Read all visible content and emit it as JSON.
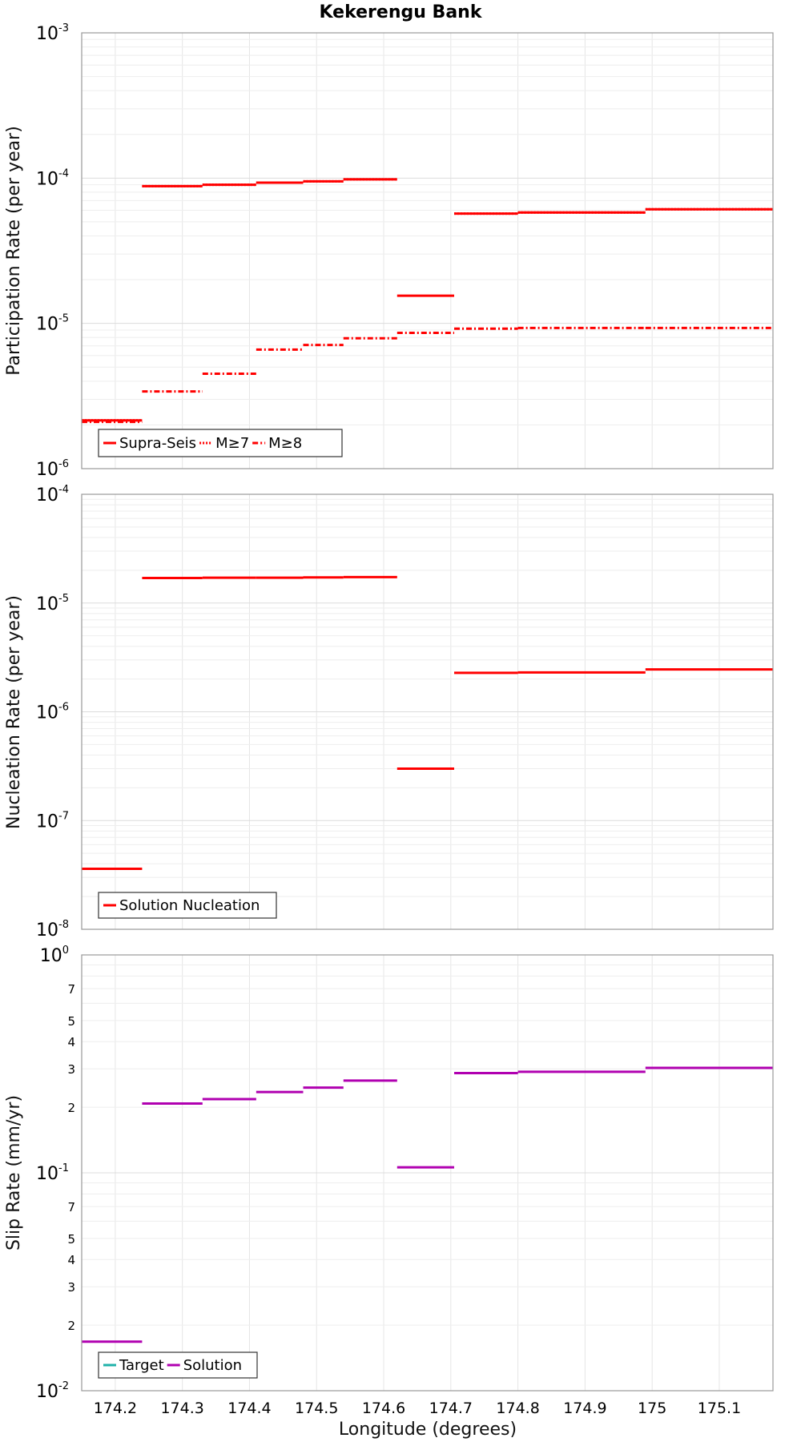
{
  "chart_data": [
    {
      "type": "line",
      "step": true,
      "title": "Kekerengu Bank",
      "xlabel": "",
      "ylabel": "Participation Rate (per year)",
      "xlim": [
        174.15,
        175.18
      ],
      "ylim": [
        1e-06,
        0.001
      ],
      "yscale": "log",
      "grid": true,
      "legend_position": "bottom-left",
      "y_ticks": [
        {
          "mantissa": "10",
          "exp": "-6",
          "value": 1e-06
        },
        {
          "mantissa": "10",
          "exp": "-5",
          "value": 1e-05
        },
        {
          "mantissa": "10",
          "exp": "-4",
          "value": 0.0001
        },
        {
          "mantissa": "10",
          "exp": "-3",
          "value": 0.001
        }
      ],
      "series": [
        {
          "name": "Supra-Seis",
          "color": "#ff0000",
          "style": "solid",
          "segments": [
            {
              "x0": 174.15,
              "x1": 174.24,
              "y": 2.15e-06
            },
            {
              "x0": 174.24,
              "x1": 174.33,
              "y": 8.8e-05
            },
            {
              "x0": 174.33,
              "x1": 174.41,
              "y": 9e-05
            },
            {
              "x0": 174.41,
              "x1": 174.48,
              "y": 9.3e-05
            },
            {
              "x0": 174.48,
              "x1": 174.54,
              "y": 9.5e-05
            },
            {
              "x0": 174.54,
              "x1": 174.62,
              "y": 9.8e-05
            },
            {
              "x0": 174.62,
              "x1": 174.705,
              "y": 1.55e-05
            },
            {
              "x0": 174.705,
              "x1": 174.8,
              "y": 5.7e-05
            },
            {
              "x0": 174.8,
              "x1": 174.99,
              "y": 5.8e-05
            },
            {
              "x0": 174.99,
              "x1": 175.18,
              "y": 6.1e-05
            }
          ]
        },
        {
          "name": "M≥7",
          "color": "#ff0000",
          "style": "dotted",
          "segments": [
            {
              "x0": 174.15,
              "x1": 174.24,
              "y": 2.15e-06
            },
            {
              "x0": 174.24,
              "x1": 174.33,
              "y": 8.8e-05
            },
            {
              "x0": 174.33,
              "x1": 174.41,
              "y": 9e-05
            },
            {
              "x0": 174.41,
              "x1": 174.48,
              "y": 9.3e-05
            },
            {
              "x0": 174.48,
              "x1": 174.54,
              "y": 9.5e-05
            },
            {
              "x0": 174.54,
              "x1": 174.62,
              "y": 9.8e-05
            },
            {
              "x0": 174.705,
              "x1": 174.8,
              "y": 5.7e-05
            },
            {
              "x0": 174.8,
              "x1": 174.99,
              "y": 5.8e-05
            },
            {
              "x0": 174.99,
              "x1": 175.18,
              "y": 6.1e-05
            }
          ]
        },
        {
          "name": "M≥8",
          "color": "#ff0000",
          "style": "dashdot",
          "segments": [
            {
              "x0": 174.15,
              "x1": 174.24,
              "y": 2.1e-06
            },
            {
              "x0": 174.24,
              "x1": 174.33,
              "y": 3.4e-06
            },
            {
              "x0": 174.33,
              "x1": 174.41,
              "y": 4.5e-06
            },
            {
              "x0": 174.41,
              "x1": 174.48,
              "y": 6.6e-06
            },
            {
              "x0": 174.48,
              "x1": 174.54,
              "y": 7.1e-06
            },
            {
              "x0": 174.54,
              "x1": 174.62,
              "y": 7.9e-06
            },
            {
              "x0": 174.62,
              "x1": 174.705,
              "y": 8.6e-06
            },
            {
              "x0": 174.705,
              "x1": 174.8,
              "y": 9.2e-06
            },
            {
              "x0": 174.8,
              "x1": 174.99,
              "y": 9.3e-06
            },
            {
              "x0": 174.99,
              "x1": 175.18,
              "y": 9.3e-06
            }
          ]
        }
      ]
    },
    {
      "type": "line",
      "step": true,
      "xlabel": "",
      "ylabel": "Nucleation Rate (per year)",
      "xlim": [
        174.15,
        175.18
      ],
      "ylim": [
        1e-08,
        0.0001
      ],
      "yscale": "log",
      "grid": true,
      "legend_position": "bottom-left",
      "y_ticks": [
        {
          "mantissa": "10",
          "exp": "-8",
          "value": 1e-08
        },
        {
          "mantissa": "10",
          "exp": "-7",
          "value": 1e-07
        },
        {
          "mantissa": "10",
          "exp": "-6",
          "value": 1e-06
        },
        {
          "mantissa": "10",
          "exp": "-5",
          "value": 1e-05
        },
        {
          "mantissa": "10",
          "exp": "-4",
          "value": 0.0001
        }
      ],
      "series": [
        {
          "name": "Solution Nucleation",
          "color": "#ff0000",
          "style": "solid",
          "segments": [
            {
              "x0": 174.15,
              "x1": 174.24,
              "y": 3.6e-08
            },
            {
              "x0": 174.24,
              "x1": 174.33,
              "y": 1.7e-05
            },
            {
              "x0": 174.33,
              "x1": 174.41,
              "y": 1.71e-05
            },
            {
              "x0": 174.41,
              "x1": 174.48,
              "y": 1.71e-05
            },
            {
              "x0": 174.48,
              "x1": 174.54,
              "y": 1.72e-05
            },
            {
              "x0": 174.54,
              "x1": 174.62,
              "y": 1.73e-05
            },
            {
              "x0": 174.62,
              "x1": 174.705,
              "y": 3e-07
            },
            {
              "x0": 174.705,
              "x1": 174.8,
              "y": 2.28e-06
            },
            {
              "x0": 174.8,
              "x1": 174.99,
              "y": 2.3e-06
            },
            {
              "x0": 174.99,
              "x1": 175.18,
              "y": 2.45e-06
            }
          ]
        }
      ]
    },
    {
      "type": "line",
      "step": true,
      "xlabel": "Longitude (degrees)",
      "ylabel": "Slip Rate (mm/yr)",
      "xlim": [
        174.15,
        175.18
      ],
      "ylim": [
        0.01,
        1
      ],
      "yscale": "log",
      "grid": true,
      "legend_position": "bottom-left",
      "y_ticks": [
        {
          "mantissa": "10",
          "exp": "-2",
          "value": 0.01
        },
        {
          "mantissa": "10",
          "exp": "-1",
          "value": 0.1
        },
        {
          "mantissa": "10",
          "exp": "0",
          "value": 1
        }
      ],
      "y_minor_ticks": [
        {
          "label": "2",
          "value": 0.02
        },
        {
          "label": "3",
          "value": 0.03
        },
        {
          "label": "4",
          "value": 0.04
        },
        {
          "label": "5",
          "value": 0.05
        },
        {
          "label": "7",
          "value": 0.07
        },
        {
          "label": "2",
          "value": 0.2
        },
        {
          "label": "3",
          "value": 0.3
        },
        {
          "label": "4",
          "value": 0.4
        },
        {
          "label": "5",
          "value": 0.5
        },
        {
          "label": "7",
          "value": 0.7
        }
      ],
      "x_ticks": [
        "174.2",
        "174.3",
        "174.4",
        "174.5",
        "174.6",
        "174.7",
        "174.8",
        "174.9",
        "175",
        "175.1"
      ],
      "series": [
        {
          "name": "Target",
          "color": "#20b2aa",
          "style": "solid",
          "segments": []
        },
        {
          "name": "Solution",
          "color": "#b000b0",
          "style": "solid",
          "segments": [
            {
              "x0": 174.15,
              "x1": 174.24,
              "y": 0.0168
            },
            {
              "x0": 174.24,
              "x1": 174.33,
              "y": 0.208
            },
            {
              "x0": 174.33,
              "x1": 174.41,
              "y": 0.218
            },
            {
              "x0": 174.41,
              "x1": 174.48,
              "y": 0.235
            },
            {
              "x0": 174.48,
              "x1": 174.54,
              "y": 0.246
            },
            {
              "x0": 174.54,
              "x1": 174.62,
              "y": 0.265
            },
            {
              "x0": 174.62,
              "x1": 174.705,
              "y": 0.106
            },
            {
              "x0": 174.705,
              "x1": 174.8,
              "y": 0.287
            },
            {
              "x0": 174.8,
              "x1": 174.99,
              "y": 0.291
            },
            {
              "x0": 174.99,
              "x1": 175.18,
              "y": 0.303
            }
          ]
        }
      ]
    }
  ]
}
